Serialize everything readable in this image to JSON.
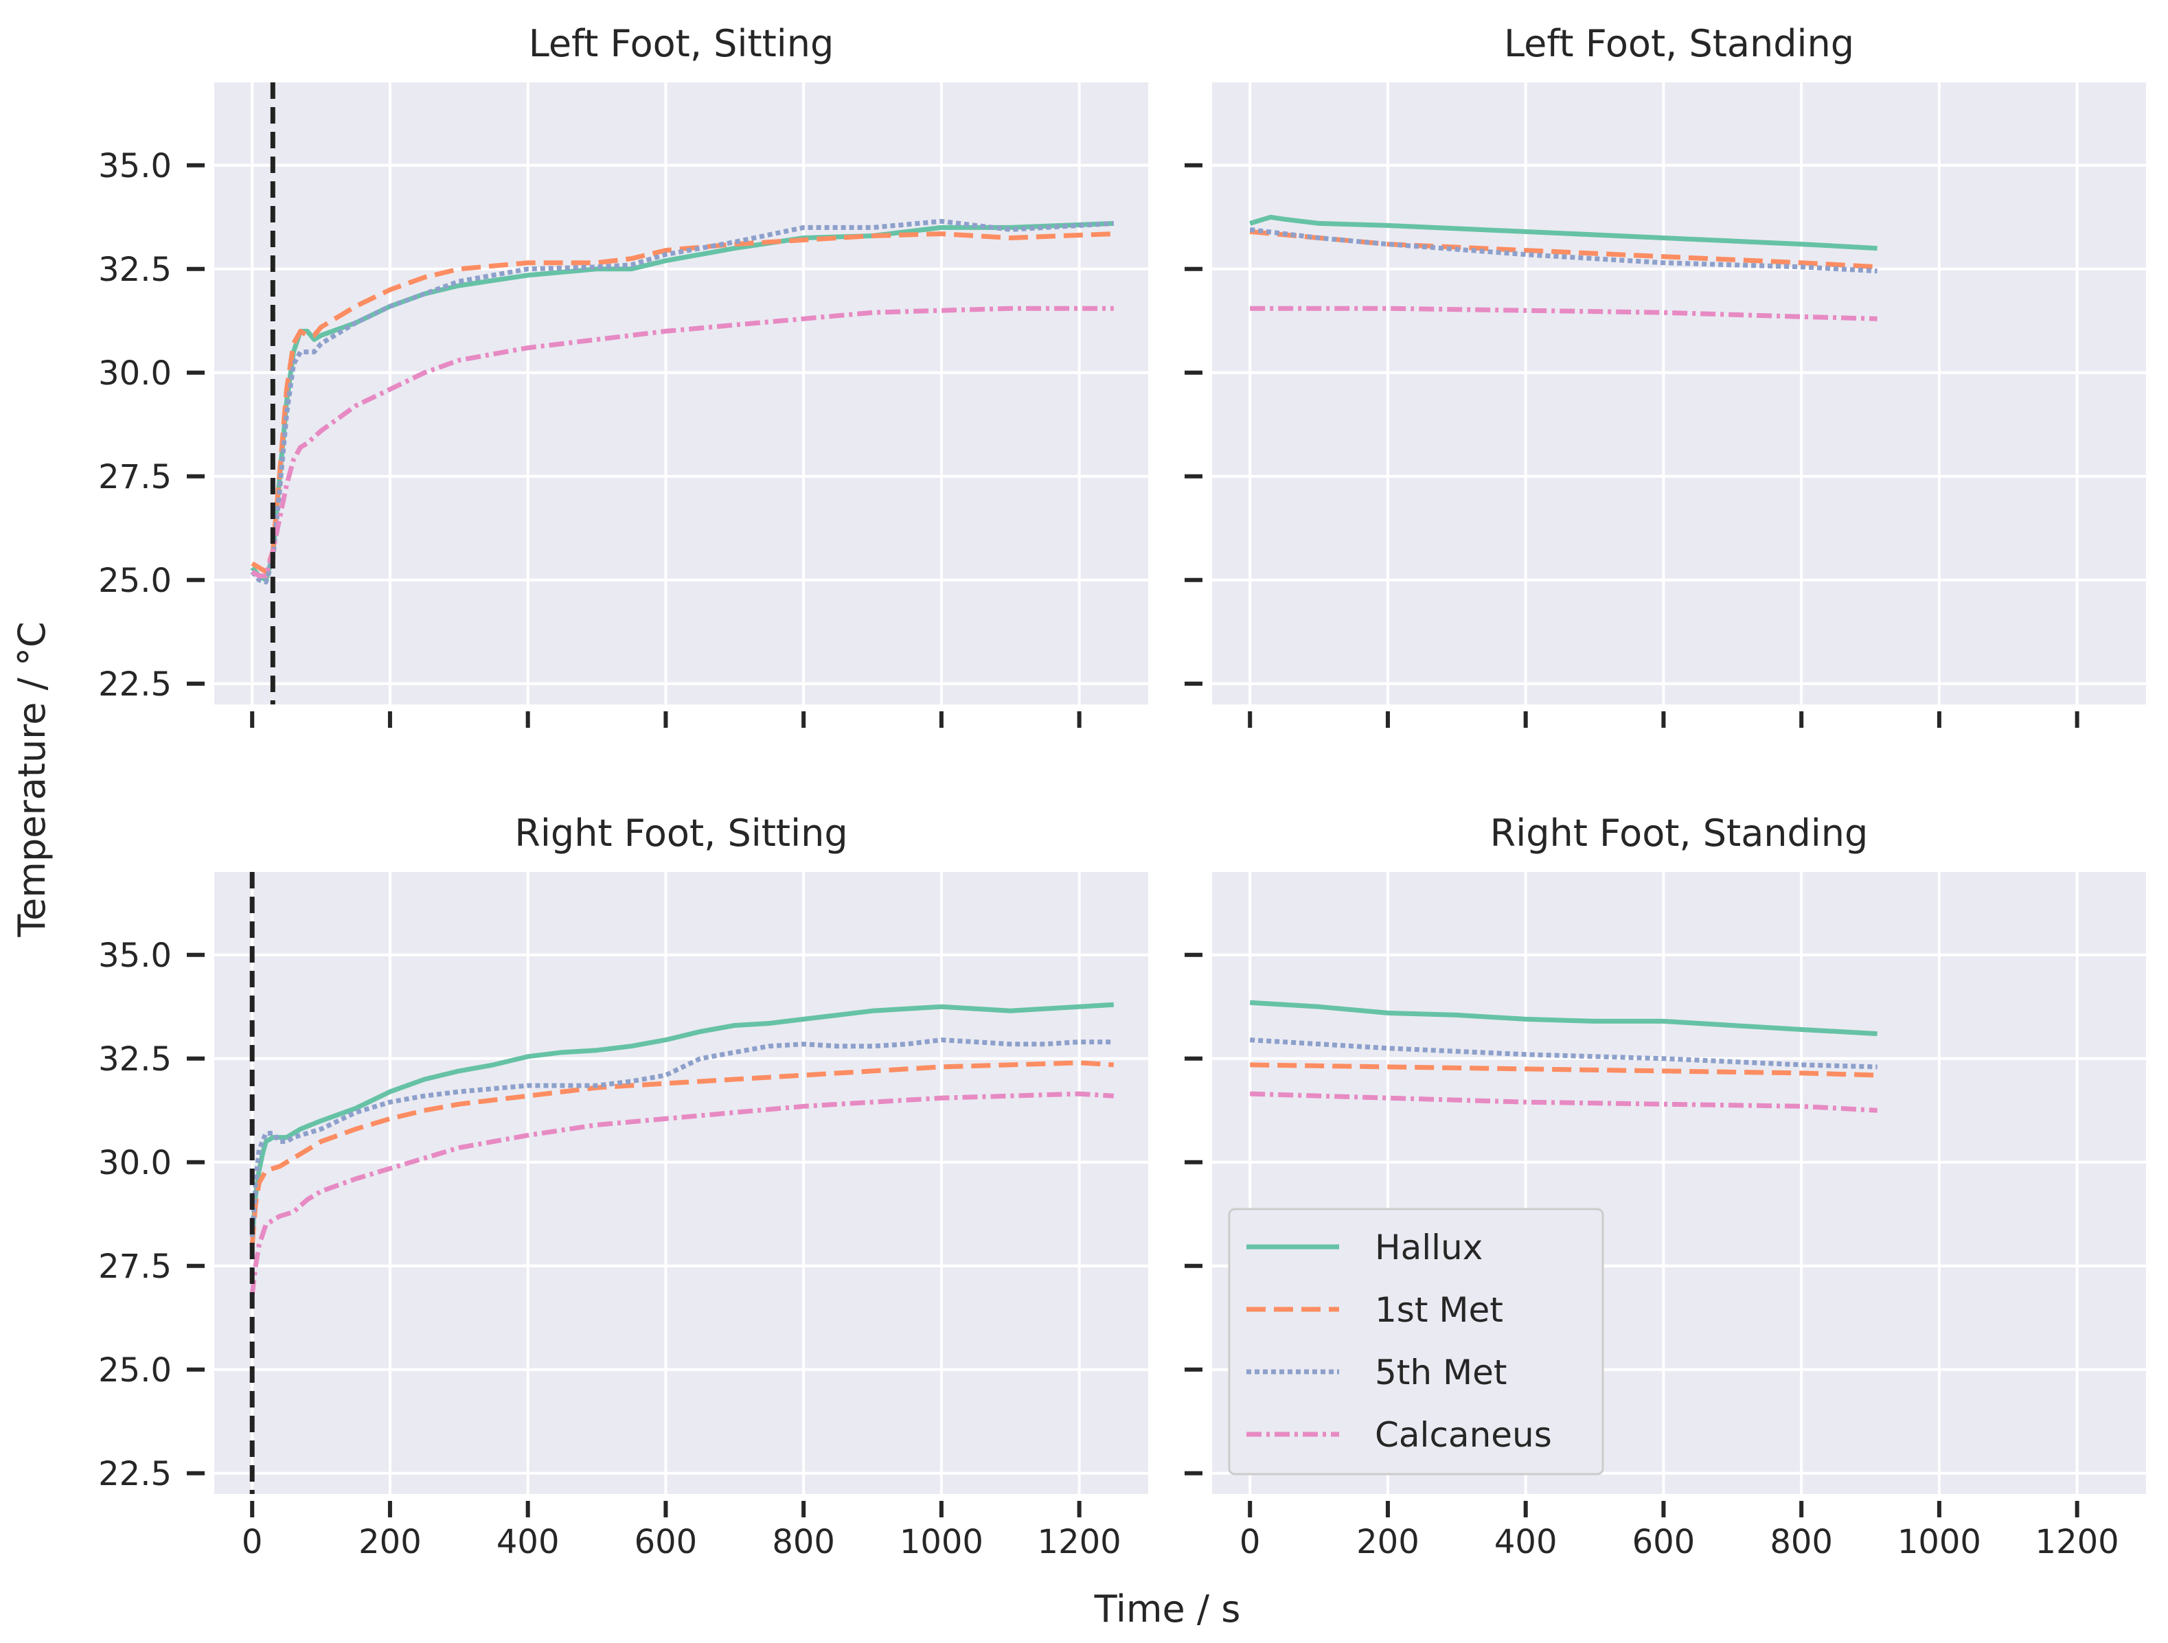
{
  "figure": {
    "ylabel": "Temperature / °C",
    "xlabel": "Time / s"
  },
  "chart_data": [
    {
      "type": "line",
      "title": "Left Foot, Sitting",
      "xlabel": "",
      "ylabel": "Temperature / °C",
      "xlim": [
        -55,
        1300
      ],
      "ylim": [
        22,
        37
      ],
      "xticks": [
        0,
        200,
        400,
        600,
        800,
        1000,
        1200
      ],
      "yticks": [
        22.5,
        25.0,
        27.5,
        30.0,
        32.5,
        35.0
      ],
      "ytick_labels": [
        "22.5",
        "25.0",
        "27.5",
        "30.0",
        "32.5",
        "35.0"
      ],
      "vline": 30,
      "series": [
        {
          "name": "Hallux",
          "x": [
            0,
            10,
            20,
            30,
            40,
            50,
            60,
            70,
            80,
            90,
            100,
            150,
            200,
            250,
            300,
            400,
            500,
            550,
            600,
            700,
            800,
            900,
            1000,
            1100,
            1250
          ],
          "values": [
            25.3,
            25.1,
            25.0,
            25.6,
            27.5,
            29.3,
            30.5,
            31.0,
            31.0,
            30.8,
            30.9,
            31.2,
            31.6,
            31.9,
            32.1,
            32.35,
            32.5,
            32.5,
            32.7,
            33.0,
            33.25,
            33.3,
            33.5,
            33.5,
            33.6
          ]
        },
        {
          "name": "1st Met",
          "x": [
            0,
            10,
            20,
            30,
            40,
            50,
            60,
            70,
            80,
            90,
            100,
            150,
            200,
            250,
            300,
            400,
            500,
            550,
            600,
            700,
            800,
            900,
            1000,
            1100,
            1250
          ],
          "values": [
            25.4,
            25.3,
            25.2,
            25.7,
            27.6,
            29.6,
            30.7,
            31.0,
            30.9,
            30.9,
            31.1,
            31.6,
            32.0,
            32.3,
            32.5,
            32.65,
            32.65,
            32.75,
            32.95,
            33.1,
            33.2,
            33.3,
            33.35,
            33.25,
            33.35
          ]
        },
        {
          "name": "5th Met",
          "x": [
            0,
            10,
            20,
            30,
            40,
            50,
            60,
            70,
            80,
            90,
            100,
            150,
            200,
            250,
            300,
            400,
            500,
            550,
            600,
            700,
            800,
            900,
            1000,
            1100,
            1250
          ],
          "values": [
            25.2,
            25.0,
            24.95,
            25.5,
            27.2,
            29.0,
            30.2,
            30.5,
            30.5,
            30.5,
            30.7,
            31.2,
            31.6,
            31.9,
            32.2,
            32.5,
            32.55,
            32.6,
            32.85,
            33.15,
            33.5,
            33.5,
            33.65,
            33.45,
            33.6
          ]
        },
        {
          "name": "Calcaneus",
          "x": [
            0,
            10,
            20,
            30,
            40,
            50,
            60,
            70,
            80,
            100,
            150,
            200,
            250,
            300,
            400,
            500,
            600,
            700,
            800,
            900,
            1000,
            1100,
            1250
          ],
          "values": [
            25.2,
            25.1,
            25.1,
            25.7,
            26.5,
            27.3,
            27.9,
            28.2,
            28.3,
            28.6,
            29.2,
            29.6,
            30.0,
            30.3,
            30.6,
            30.8,
            31.0,
            31.15,
            31.3,
            31.45,
            31.5,
            31.55,
            31.55
          ]
        }
      ]
    },
    {
      "type": "line",
      "title": "Left Foot, Standing",
      "xlabel": "",
      "ylabel": "",
      "xlim": [
        -55,
        1300
      ],
      "ylim": [
        22,
        37
      ],
      "xticks": [
        0,
        200,
        400,
        600,
        800,
        1000,
        1200
      ],
      "yticks": [
        22.5,
        25.0,
        27.5,
        30.0,
        32.5,
        35.0
      ],
      "series": [
        {
          "name": "Hallux",
          "x": [
            0,
            10,
            20,
            30,
            50,
            100,
            200,
            400,
            600,
            800,
            910
          ],
          "values": [
            33.6,
            33.65,
            33.7,
            33.75,
            33.7,
            33.6,
            33.55,
            33.4,
            33.25,
            33.1,
            33.0
          ]
        },
        {
          "name": "1st Met",
          "x": [
            0,
            100,
            200,
            400,
            600,
            800,
            910
          ],
          "values": [
            33.4,
            33.25,
            33.1,
            32.95,
            32.8,
            32.65,
            32.55
          ]
        },
        {
          "name": "5th Met",
          "x": [
            0,
            100,
            200,
            400,
            600,
            800,
            910
          ],
          "values": [
            33.45,
            33.25,
            33.1,
            32.85,
            32.65,
            32.55,
            32.45
          ]
        },
        {
          "name": "Calcaneus",
          "x": [
            0,
            200,
            400,
            600,
            800,
            910
          ],
          "values": [
            31.55,
            31.55,
            31.5,
            31.45,
            31.35,
            31.3
          ]
        }
      ]
    },
    {
      "type": "line",
      "title": "Right Foot, Sitting",
      "xlabel": "Time / s",
      "ylabel": "Temperature / °C",
      "xlim": [
        -55,
        1300
      ],
      "ylim": [
        22,
        37
      ],
      "xticks": [
        0,
        200,
        400,
        600,
        800,
        1000,
        1200
      ],
      "xtick_labels": [
        "0",
        "200",
        "400",
        "600",
        "800",
        "1000",
        "1200"
      ],
      "yticks": [
        22.5,
        25.0,
        27.5,
        30.0,
        32.5,
        35.0
      ],
      "ytick_labels": [
        "22.5",
        "25.0",
        "27.5",
        "30.0",
        "32.5",
        "35.0"
      ],
      "vline": 0,
      "series": [
        {
          "name": "Hallux",
          "x": [
            0,
            5,
            10,
            15,
            20,
            30,
            40,
            50,
            70,
            100,
            150,
            200,
            250,
            300,
            350,
            400,
            450,
            500,
            550,
            600,
            650,
            700,
            750,
            800,
            850,
            900,
            950,
            1000,
            1050,
            1100,
            1150,
            1200,
            1250
          ],
          "values": [
            28.2,
            29.2,
            29.8,
            30.2,
            30.5,
            30.6,
            30.6,
            30.6,
            30.8,
            31.0,
            31.3,
            31.7,
            32.0,
            32.2,
            32.35,
            32.55,
            32.65,
            32.7,
            32.8,
            32.95,
            33.15,
            33.3,
            33.35,
            33.45,
            33.55,
            33.65,
            33.7,
            33.75,
            33.7,
            33.65,
            33.7,
            33.75,
            33.8
          ]
        },
        {
          "name": "1st Met",
          "x": [
            0,
            5,
            10,
            20,
            40,
            60,
            80,
            100,
            150,
            200,
            250,
            300,
            400,
            500,
            600,
            700,
            800,
            900,
            1000,
            1100,
            1200,
            1250
          ],
          "values": [
            28.0,
            29.0,
            29.5,
            29.8,
            29.9,
            30.1,
            30.3,
            30.5,
            30.8,
            31.05,
            31.25,
            31.4,
            31.6,
            31.8,
            31.9,
            32.0,
            32.1,
            32.2,
            32.3,
            32.35,
            32.4,
            32.35
          ]
        },
        {
          "name": "5th Met",
          "x": [
            0,
            5,
            10,
            20,
            30,
            40,
            50,
            60,
            80,
            100,
            150,
            200,
            250,
            300,
            400,
            500,
            550,
            600,
            650,
            700,
            750,
            800,
            850,
            900,
            950,
            1000,
            1050,
            1100,
            1150,
            1200,
            1250
          ],
          "values": [
            28.2,
            29.5,
            30.3,
            30.7,
            30.7,
            30.5,
            30.5,
            30.6,
            30.7,
            30.8,
            31.2,
            31.45,
            31.6,
            31.7,
            31.85,
            31.85,
            31.95,
            32.1,
            32.5,
            32.65,
            32.8,
            32.85,
            32.8,
            32.8,
            32.85,
            32.95,
            32.9,
            32.85,
            32.85,
            32.9,
            32.9
          ]
        },
        {
          "name": "Calcaneus",
          "x": [
            0,
            5,
            10,
            20,
            30,
            40,
            60,
            80,
            100,
            150,
            200,
            250,
            300,
            400,
            500,
            600,
            700,
            800,
            900,
            1000,
            1100,
            1200,
            1250
          ],
          "values": [
            26.8,
            27.5,
            28.0,
            28.5,
            28.6,
            28.7,
            28.8,
            29.1,
            29.3,
            29.6,
            29.85,
            30.1,
            30.35,
            30.65,
            30.9,
            31.05,
            31.2,
            31.35,
            31.45,
            31.55,
            31.6,
            31.65,
            31.6
          ]
        }
      ]
    },
    {
      "type": "line",
      "title": "Right Foot, Standing",
      "xlabel": "Time / s",
      "ylabel": "",
      "xlim": [
        -55,
        1300
      ],
      "ylim": [
        22,
        37
      ],
      "xticks": [
        0,
        200,
        400,
        600,
        800,
        1000,
        1200
      ],
      "xtick_labels": [
        "0",
        "200",
        "400",
        "600",
        "800",
        "1000",
        "1200"
      ],
      "yticks": [
        22.5,
        25.0,
        27.5,
        30.0,
        32.5,
        35.0
      ],
      "series": [
        {
          "name": "Hallux",
          "x": [
            0,
            100,
            200,
            300,
            400,
            500,
            600,
            700,
            800,
            910
          ],
          "values": [
            33.85,
            33.75,
            33.6,
            33.55,
            33.45,
            33.4,
            33.4,
            33.3,
            33.2,
            33.1
          ]
        },
        {
          "name": "1st Met",
          "x": [
            0,
            200,
            400,
            600,
            800,
            910
          ],
          "values": [
            32.35,
            32.3,
            32.25,
            32.2,
            32.15,
            32.1
          ]
        },
        {
          "name": "5th Met",
          "x": [
            0,
            200,
            400,
            600,
            800,
            910
          ],
          "values": [
            32.95,
            32.75,
            32.6,
            32.5,
            32.35,
            32.3
          ]
        },
        {
          "name": "Calcaneus",
          "x": [
            0,
            200,
            400,
            600,
            800,
            910
          ],
          "values": [
            31.65,
            31.55,
            31.45,
            31.4,
            31.35,
            31.25
          ]
        }
      ]
    }
  ],
  "legend": {
    "placement": "lower-left of Right Foot, Standing",
    "entries": [
      {
        "label": "Hallux",
        "color": "#66c2a5",
        "dash": "solid"
      },
      {
        "label": "1st Met",
        "color": "#fc8d62",
        "dash": "dashed"
      },
      {
        "label": "5th Met",
        "color": "#8da0cb",
        "dash": "dotted"
      },
      {
        "label": "Calcaneus",
        "color": "#e78ac3",
        "dash": "dashdot"
      }
    ]
  },
  "styles": {
    "axes_bg": "#eaeaf2",
    "grid": "#ffffff",
    "tick": "#262626",
    "vline_color": "#222222",
    "series_colors": [
      "#66c2a5",
      "#fc8d62",
      "#8da0cb",
      "#e78ac3"
    ]
  }
}
